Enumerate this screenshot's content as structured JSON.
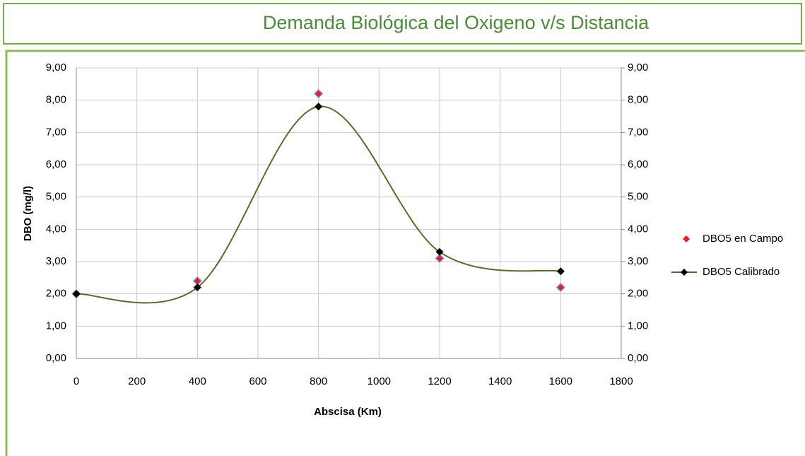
{
  "chart_data": {
    "type": "scatter",
    "title": "Demanda Biológica del Oxigeno v/s Distancia",
    "x_label": "Abscisa (Km)",
    "y_label": "DBO (mg/l)",
    "x": [
      0,
      400,
      800,
      1200,
      1600
    ],
    "series": [
      {
        "name": "DBO5  en Campo",
        "color": "#e0202a",
        "values": [
          2.0,
          2.4,
          8.2,
          3.1,
          2.2
        ]
      },
      {
        "name": "DBO5 Calibrado",
        "color": "#5b6b2f",
        "values": [
          2.0,
          2.2,
          7.8,
          3.3,
          2.7
        ],
        "line": "smooth"
      }
    ],
    "xlim": [
      0,
      1800
    ],
    "xticks": [
      0,
      200,
      400,
      600,
      800,
      1000,
      1200,
      1400,
      1600,
      1800
    ],
    "ylim": [
      0,
      9
    ],
    "yticks": [
      {
        "value": 0,
        "label": "0,00"
      },
      {
        "value": 1,
        "label": "1,00"
      },
      {
        "value": 2,
        "label": "2,00"
      },
      {
        "value": 3,
        "label": "3,00"
      },
      {
        "value": 4,
        "label": "4,00"
      },
      {
        "value": 5,
        "label": "5,00"
      },
      {
        "value": 6,
        "label": "6,00"
      },
      {
        "value": 7,
        "label": "7,00"
      },
      {
        "value": 8,
        "label": "8,00"
      },
      {
        "value": 9,
        "label": "9,00"
      }
    ],
    "y2lim": [
      0,
      9
    ],
    "y2ticks": [
      {
        "value": 0,
        "label": "0,00"
      },
      {
        "value": 1,
        "label": "1,00"
      },
      {
        "value": 2,
        "label": "2,00"
      },
      {
        "value": 3,
        "label": "3,00"
      },
      {
        "value": 4,
        "label": "4,00"
      },
      {
        "value": 5,
        "label": "5,00"
      },
      {
        "value": 6,
        "label": "6,00"
      },
      {
        "value": 7,
        "label": "7,00"
      },
      {
        "value": 8,
        "label": "8,00"
      },
      {
        "value": 9,
        "label": "9,00"
      }
    ],
    "grid": true,
    "legend": "right"
  }
}
